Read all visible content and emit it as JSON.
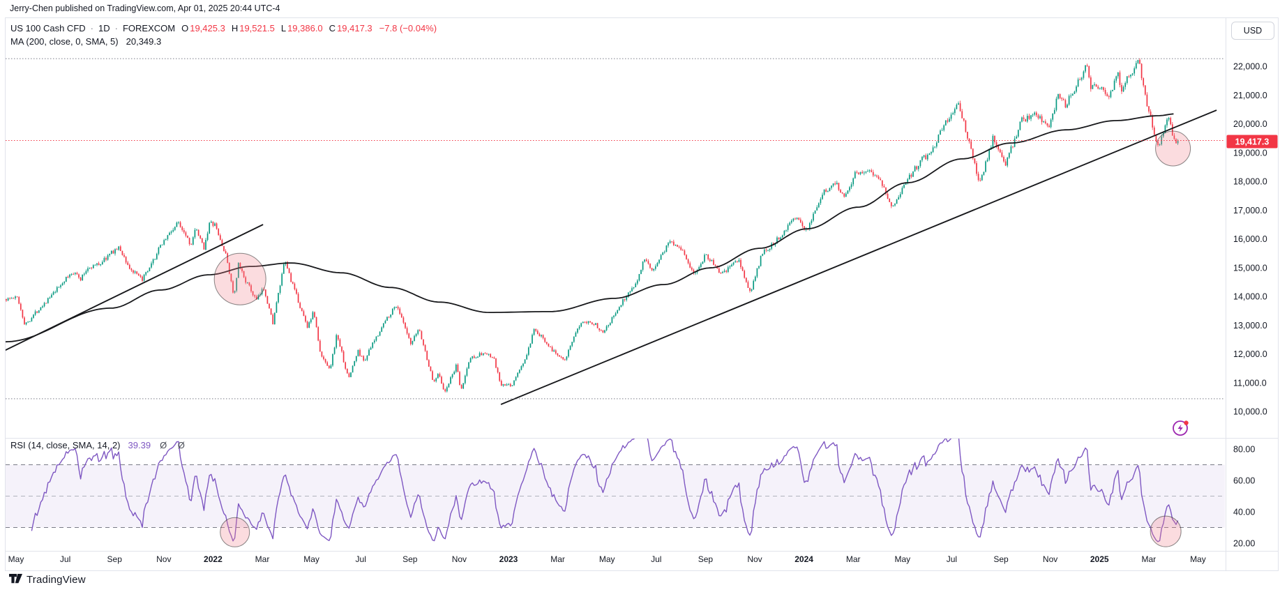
{
  "header": {
    "published_line": "Jerry-Chen published on TradingView.com, Apr 01, 2025 20:44 UTC-4"
  },
  "toolbar": {
    "currency_label": "USD"
  },
  "legend": {
    "symbol_title": "US 100 Cash CFD",
    "separator": "·",
    "interval": "1D",
    "exchange": "FOREXCOM",
    "ohlc": [
      {
        "label": "O",
        "value": "19,425.3"
      },
      {
        "label": "H",
        "value": "19,521.5"
      },
      {
        "label": "L",
        "value": "19,386.0"
      },
      {
        "label": "C",
        "value": "19,417.3"
      }
    ],
    "change": "−7.8 (−0.04%)",
    "ma_label": "MA (200, close, 0, SMA, 5)",
    "ma_value": "20,349.3"
  },
  "rsi_legend": {
    "label": "RSI (14, close, SMA, 14, 2)",
    "value": "39.39",
    "extra": "Ø Ø"
  },
  "price_scale": {
    "labels": [
      {
        "text": "22,000.0",
        "value": 22000
      },
      {
        "text": "21,000.0",
        "value": 21000
      },
      {
        "text": "20,000.0",
        "value": 20000
      },
      {
        "text": "19,000.0",
        "value": 19000
      },
      {
        "text": "18,000.0",
        "value": 18000
      },
      {
        "text": "17,000.0",
        "value": 17000
      },
      {
        "text": "16,000.0",
        "value": 16000
      },
      {
        "text": "15,000.0",
        "value": 15000
      },
      {
        "text": "14,000.0",
        "value": 14000
      },
      {
        "text": "13,000.0",
        "value": 13000
      },
      {
        "text": "12,000.0",
        "value": 12000
      },
      {
        "text": "11,000.0",
        "value": 11000
      },
      {
        "text": "10,000.0",
        "value": 10000
      }
    ],
    "current_price_label": "19,417.3",
    "current_price": 19417.3
  },
  "rsi_scale": {
    "labels": [
      {
        "text": "80.00",
        "value": 80
      },
      {
        "text": "60.00",
        "value": 60
      },
      {
        "text": "40.00",
        "value": 40
      },
      {
        "text": "20.00",
        "value": 20
      }
    ]
  },
  "time_axis": {
    "labels": [
      {
        "text": "May",
        "date": "2021-05-01",
        "bold": false
      },
      {
        "text": "Jul",
        "date": "2021-07-01",
        "bold": false
      },
      {
        "text": "Sep",
        "date": "2021-09-01",
        "bold": false
      },
      {
        "text": "Nov",
        "date": "2021-11-01",
        "bold": false
      },
      {
        "text": "2022",
        "date": "2022-01-01",
        "bold": true
      },
      {
        "text": "Mar",
        "date": "2022-03-01",
        "bold": false
      },
      {
        "text": "May",
        "date": "2022-05-01",
        "bold": false
      },
      {
        "text": "Jul",
        "date": "2022-07-01",
        "bold": false
      },
      {
        "text": "Sep",
        "date": "2022-09-01",
        "bold": false
      },
      {
        "text": "Nov",
        "date": "2022-11-01",
        "bold": false
      },
      {
        "text": "2023",
        "date": "2023-01-01",
        "bold": true
      },
      {
        "text": "Mar",
        "date": "2023-03-01",
        "bold": false
      },
      {
        "text": "May",
        "date": "2023-05-01",
        "bold": false
      },
      {
        "text": "Jul",
        "date": "2023-07-01",
        "bold": false
      },
      {
        "text": "Sep",
        "date": "2023-09-01",
        "bold": false
      },
      {
        "text": "Nov",
        "date": "2023-11-01",
        "bold": false
      },
      {
        "text": "2024",
        "date": "2024-01-01",
        "bold": true
      },
      {
        "text": "Mar",
        "date": "2024-03-01",
        "bold": false
      },
      {
        "text": "May",
        "date": "2024-05-01",
        "bold": false
      },
      {
        "text": "Jul",
        "date": "2024-07-01",
        "bold": false
      },
      {
        "text": "Sep",
        "date": "2024-09-01",
        "bold": false
      },
      {
        "text": "Nov",
        "date": "2024-11-01",
        "bold": false
      },
      {
        "text": "2025",
        "date": "2025-01-01",
        "bold": true
      },
      {
        "text": "Mar",
        "date": "2025-03-01",
        "bold": false
      },
      {
        "text": "May",
        "date": "2025-05-01",
        "bold": false
      }
    ]
  },
  "footer": {
    "logo_text": "TradingView"
  },
  "colors": {
    "up": "#089981",
    "down": "#f23645",
    "line": "#17181b",
    "rsi": "#7e57c2",
    "band": "#7e57c2",
    "red": "#f23645",
    "text": "#131722",
    "muted": "#787b86",
    "grid_mid": "#b0b3bc",
    "border": "#e1e3eb",
    "badge_text": "#ffffff",
    "circle_fill": "rgba(242,130,140,0.28)",
    "circle_stroke": "rgba(40,40,40,0.55)",
    "flash": "#9c27b0"
  },
  "chart_data": {
    "type": "candlestick",
    "title": "US 100 Cash CFD · 1D · FOREXCOM",
    "ylabel": "USD",
    "price_ylim": [
      9080,
      23700
    ],
    "rsi_ylim": [
      15,
      87
    ],
    "rsi_current": 39.39,
    "close_series": [
      [
        "2021-04-18",
        13900
      ],
      [
        "2021-05-03",
        13960
      ],
      [
        "2021-05-12",
        13000
      ],
      [
        "2021-05-21",
        13300
      ],
      [
        "2021-06-01",
        13640
      ],
      [
        "2021-06-15",
        14030
      ],
      [
        "2021-06-30",
        14550
      ],
      [
        "2021-07-13",
        14890
      ],
      [
        "2021-07-19",
        14550
      ],
      [
        "2021-07-29",
        15000
      ],
      [
        "2021-08-13",
        15130
      ],
      [
        "2021-08-31",
        15600
      ],
      [
        "2021-09-07",
        15680
      ],
      [
        "2021-09-20",
        14950
      ],
      [
        "2021-10-04",
        14580
      ],
      [
        "2021-10-13",
        14900
      ],
      [
        "2021-10-29",
        15850
      ],
      [
        "2021-11-19",
        16570
      ],
      [
        "2021-11-30",
        16100
      ],
      [
        "2021-12-03",
        15750
      ],
      [
        "2021-12-10",
        16330
      ],
      [
        "2021-12-20",
        15680
      ],
      [
        "2021-12-27",
        16530
      ],
      [
        "2022-01-03",
        16500
      ],
      [
        "2022-01-18",
        15320
      ],
      [
        "2022-01-27",
        13950
      ],
      [
        "2022-02-02",
        15100
      ],
      [
        "2022-02-11",
        14550
      ],
      [
        "2022-02-24",
        13850
      ],
      [
        "2022-03-03",
        14300
      ],
      [
        "2022-03-14",
        13080
      ],
      [
        "2022-03-29",
        15250
      ],
      [
        "2022-04-08",
        14400
      ],
      [
        "2022-04-26",
        12950
      ],
      [
        "2022-05-04",
        13480
      ],
      [
        "2022-05-12",
        11950
      ],
      [
        "2022-05-24",
        11500
      ],
      [
        "2022-06-02",
        12700
      ],
      [
        "2022-06-16",
        11120
      ],
      [
        "2022-06-28",
        12100
      ],
      [
        "2022-07-05",
        11750
      ],
      [
        "2022-07-22",
        12680
      ],
      [
        "2022-08-03",
        13250
      ],
      [
        "2022-08-15",
        13720
      ],
      [
        "2022-09-02",
        12300
      ],
      [
        "2022-09-12",
        12900
      ],
      [
        "2022-09-30",
        10980
      ],
      [
        "2022-10-06",
        11400
      ],
      [
        "2022-10-13",
        10600
      ],
      [
        "2022-10-17",
        10900
      ],
      [
        "2022-10-28",
        11600
      ],
      [
        "2022-11-03",
        10680
      ],
      [
        "2022-11-14",
        11850
      ],
      [
        "2022-12-01",
        12030
      ],
      [
        "2022-12-13",
        11850
      ],
      [
        "2022-12-22",
        10900
      ],
      [
        "2023-01-05",
        10910
      ],
      [
        "2023-01-23",
        11900
      ],
      [
        "2023-02-02",
        12800
      ],
      [
        "2023-02-15",
        12500
      ],
      [
        "2023-02-27",
        12050
      ],
      [
        "2023-03-10",
        11830
      ],
      [
        "2023-03-31",
        13180
      ],
      [
        "2023-04-14",
        13090
      ],
      [
        "2023-04-26",
        12780
      ],
      [
        "2023-05-08",
        13250
      ],
      [
        "2023-05-22",
        13900
      ],
      [
        "2023-06-07",
        14500
      ],
      [
        "2023-06-16",
        15280
      ],
      [
        "2023-06-26",
        14880
      ],
      [
        "2023-07-18",
        15930
      ],
      [
        "2023-08-01",
        15700
      ],
      [
        "2023-08-18",
        14700
      ],
      [
        "2023-09-01",
        15480
      ],
      [
        "2023-09-21",
        14750
      ],
      [
        "2023-10-11",
        15280
      ],
      [
        "2023-10-26",
        14110
      ],
      [
        "2023-11-10",
        15480
      ],
      [
        "2023-11-30",
        16000
      ],
      [
        "2023-12-19",
        16770
      ],
      [
        "2024-01-04",
        16300
      ],
      [
        "2024-01-24",
        17570
      ],
      [
        "2024-02-09",
        17960
      ],
      [
        "2024-02-21",
        17480
      ],
      [
        "2024-03-04",
        18300
      ],
      [
        "2024-03-21",
        18400
      ],
      [
        "2024-04-04",
        18100
      ],
      [
        "2024-04-19",
        17030
      ],
      [
        "2024-05-03",
        17900
      ],
      [
        "2024-05-23",
        18700
      ],
      [
        "2024-06-07",
        19050
      ],
      [
        "2024-06-20",
        19900
      ],
      [
        "2024-07-10",
        20675
      ],
      [
        "2024-07-25",
        19090
      ],
      [
        "2024-08-05",
        17900
      ],
      [
        "2024-08-22",
        19550
      ],
      [
        "2024-09-06",
        18540
      ],
      [
        "2024-09-26",
        20100
      ],
      [
        "2024-10-14",
        20310
      ],
      [
        "2024-10-31",
        19890
      ],
      [
        "2024-11-11",
        21100
      ],
      [
        "2024-11-20",
        20650
      ],
      [
        "2024-12-16",
        22050
      ],
      [
        "2024-12-20",
        21300
      ],
      [
        "2025-01-03",
        21330
      ],
      [
        "2025-01-13",
        20850
      ],
      [
        "2025-01-24",
        21900
      ],
      [
        "2025-01-27",
        21100
      ],
      [
        "2025-02-03",
        21500
      ],
      [
        "2025-02-19",
        22200
      ],
      [
        "2025-02-28",
        20850
      ],
      [
        "2025-03-13",
        19150
      ],
      [
        "2025-03-26",
        20280
      ],
      [
        "2025-04-01",
        19417.3
      ]
    ],
    "ma200_series": [
      [
        "2021-04-18",
        12420
      ],
      [
        "2021-08-27",
        13590
      ],
      [
        "2021-10-27",
        14220
      ],
      [
        "2021-12-26",
        14750
      ],
      [
        "2022-02-17",
        15040
      ],
      [
        "2022-04-06",
        15160
      ],
      [
        "2022-06-07",
        14820
      ],
      [
        "2022-08-07",
        14310
      ],
      [
        "2022-10-07",
        13800
      ],
      [
        "2022-12-07",
        13440
      ],
      [
        "2023-02-22",
        13470
      ],
      [
        "2023-05-10",
        13930
      ],
      [
        "2023-07-10",
        14410
      ],
      [
        "2023-09-07",
        14990
      ],
      [
        "2023-11-07",
        15670
      ],
      [
        "2024-01-05",
        16350
      ],
      [
        "2024-03-07",
        17100
      ],
      [
        "2024-05-07",
        17950
      ],
      [
        "2024-07-14",
        18780
      ],
      [
        "2024-09-13",
        19330
      ],
      [
        "2024-11-21",
        19790
      ],
      [
        "2025-01-21",
        20110
      ],
      [
        "2025-03-13",
        20280
      ],
      [
        "2025-04-05",
        20349.3
      ]
    ],
    "trendlines": [
      {
        "from": {
          "date": "2021-04-11",
          "price": 12030
        },
        "to": {
          "date": "2022-03-02",
          "price": 16497
        }
      },
      {
        "from": {
          "date": "2022-12-22",
          "price": 10243
        },
        "to": {
          "date": "2025-05-24",
          "price": 20473
        }
      }
    ],
    "levels": [
      {
        "price": 22265,
        "style": "dotted",
        "color": "muted"
      },
      {
        "price": 19417.3,
        "style": "dotted",
        "color": "red"
      },
      {
        "price": 10440,
        "style": "dotted",
        "color": "muted"
      }
    ],
    "rsi_bands": {
      "upper": 70,
      "middle": 50,
      "lower": 30
    },
    "highlights": {
      "price": [
        {
          "date": "2022-02-04",
          "price": 14600,
          "r": 37
        },
        {
          "date": "2025-03-31",
          "price": 19140,
          "r": 25
        }
      ],
      "rsi": [
        {
          "date": "2022-01-28",
          "value": 27,
          "r": 21
        },
        {
          "date": "2025-03-22",
          "value": 27.5,
          "r": 22
        }
      ]
    }
  }
}
